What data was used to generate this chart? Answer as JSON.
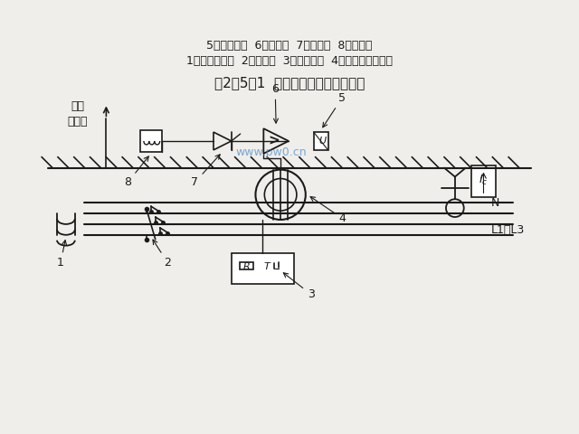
{
  "title": "图2－5－1  电流型漏电保护器的原理",
  "caption_line1": "1－供电变压器  2－主开关  3－试验按钮  4－零序电流互感器",
  "caption_line2": "5－压敏电阻  6－放大器  7－晶闸管  8－脱扣器",
  "watermark": "www.pw0.cn",
  "bg_color": "#f0eeea",
  "line_color": "#1a1a1a",
  "label_L1L3": "L1～L3",
  "label_N": "N",
  "label_R": "R",
  "label_T": "T",
  "label_U": "U",
  "label_Ic": "Iₙ",
  "label_ground": "工作\n接地体",
  "labels_numbered": [
    "1",
    "2",
    "3",
    "4",
    "5",
    "6",
    "7",
    "8"
  ]
}
